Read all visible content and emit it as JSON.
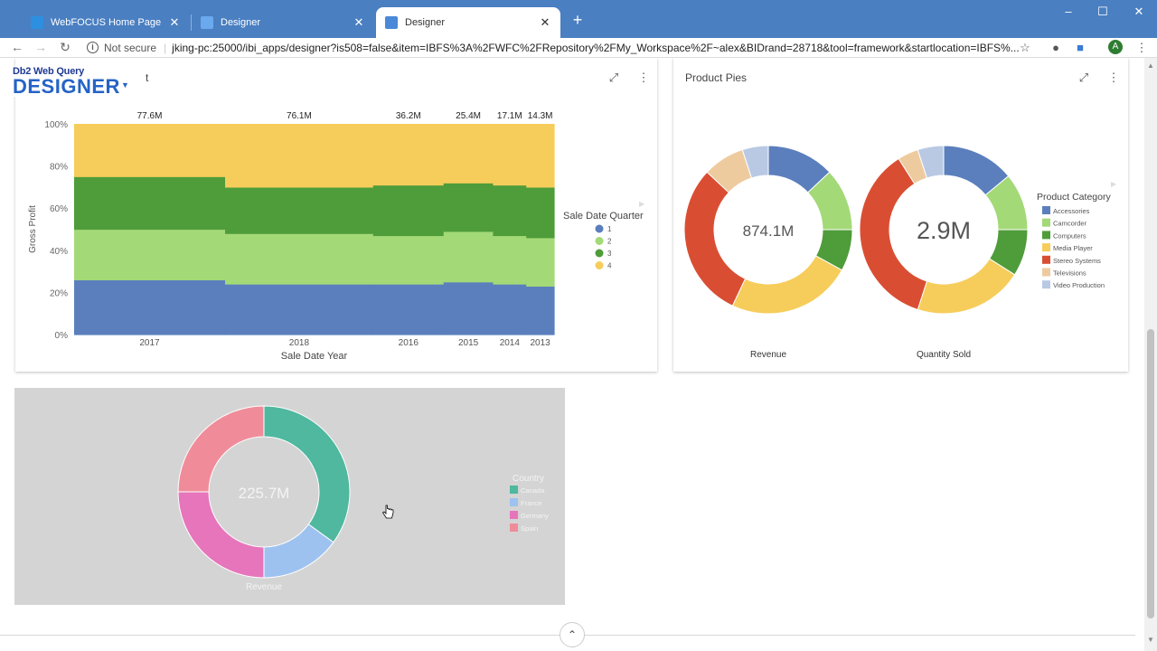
{
  "browser": {
    "tabs": [
      {
        "label": "WebFOCUS Home Page",
        "active": false
      },
      {
        "label": "Designer",
        "active": false
      },
      {
        "label": "Designer",
        "active": true
      }
    ],
    "new_tab_label": "+",
    "window_controls": {
      "minimize": "–",
      "maximize": "☐",
      "close": "✕"
    },
    "address": {
      "security_label": "Not secure",
      "url": "jking-pc:25000/ibi_apps/designer?is508=false&item=IBFS%3A%2FWFC%2FRepository%2FMy_Workspace%2F~alex&BIDrand=28718&tool=framework&startlocation=IBFS%..."
    },
    "profile_initial": "A",
    "icons": {
      "back": "arrow-left-icon",
      "forward": "arrow-right-icon",
      "reload": "reload-icon",
      "star": "star-icon",
      "ext1": "extension-icon",
      "ext2": "chat-icon",
      "menu": "kebab-menu-icon"
    }
  },
  "app": {
    "brand_sub": "Db2 Web Query",
    "brand_main": "DESIGNER",
    "collapse_icon": "chevron-up-icon"
  },
  "panels": {
    "area_chart": {
      "title": "t"
    },
    "pies": {
      "title": "Product Pies"
    },
    "country": {
      "title": ""
    }
  },
  "colors": {
    "q1": "#5b7fbd",
    "q2": "#a3d977",
    "q3": "#4f9c3a",
    "q4": "#f6cd5b",
    "accessories": "#5b7fbd",
    "camcorder": "#a3d977",
    "computers": "#4f9c3a",
    "media_player": "#f6cd5b",
    "stereo_systems": "#d94e33",
    "televisions": "#eecb9e",
    "video_production": "#b9c9e4",
    "canada": "#4fb89f",
    "france": "#9ec2f0",
    "germany": "#e675bb",
    "spain": "#f08c9a"
  },
  "chart_data": [
    {
      "type": "area",
      "title": "",
      "xlabel": "Sale Date Year",
      "ylabel": "Gross Profit",
      "ylim": [
        0,
        100
      ],
      "y_ticks": [
        "0%",
        "20%",
        "40%",
        "60%",
        "80%",
        "100%"
      ],
      "categories": [
        "2017",
        "2018",
        "2016",
        "2015",
        "2014",
        "2013"
      ],
      "category_widths": [
        77.6,
        76.1,
        36.2,
        25.4,
        17.1,
        14.3
      ],
      "totals": [
        "77.6M",
        "76.1M",
        "36.2M",
        "25.4M",
        "17.1M",
        "14.3M"
      ],
      "legend_title": "Sale Date Quarter",
      "legend_position": "right",
      "stacking": "percent",
      "series": [
        {
          "name": "1",
          "values": [
            26,
            24,
            24,
            25,
            24,
            23
          ]
        },
        {
          "name": "2",
          "values": [
            24,
            24,
            23,
            24,
            23,
            23
          ]
        },
        {
          "name": "3",
          "values": [
            25,
            22,
            24,
            23,
            24,
            24
          ]
        },
        {
          "name": "4",
          "values": [
            25,
            30,
            29,
            28,
            29,
            30
          ]
        }
      ]
    },
    {
      "type": "pie",
      "donut": true,
      "xlabel": "Revenue",
      "center_label": "874.1M",
      "categories": [
        "Accessories",
        "Camcorder",
        "Computers",
        "Media Player",
        "Stereo Systems",
        "Televisions",
        "Video Production"
      ],
      "values": [
        13,
        12,
        8,
        24,
        30,
        8,
        5
      ],
      "legend_title": "Product Category",
      "legend_position": "right"
    },
    {
      "type": "pie",
      "donut": true,
      "xlabel": "Quantity Sold",
      "center_label": "2.9M",
      "categories": [
        "Accessories",
        "Camcorder",
        "Computers",
        "Media Player",
        "Stereo Systems",
        "Televisions",
        "Video Production"
      ],
      "values": [
        14,
        11,
        9,
        21,
        36,
        4,
        5
      ]
    },
    {
      "type": "pie",
      "donut": true,
      "xlabel": "Revenue",
      "center_label": "225.7M",
      "categories": [
        "Canada",
        "France",
        "Germany",
        "Spain"
      ],
      "values": [
        35,
        15,
        25,
        25
      ],
      "legend_title": "Country",
      "legend_position": "right"
    }
  ]
}
